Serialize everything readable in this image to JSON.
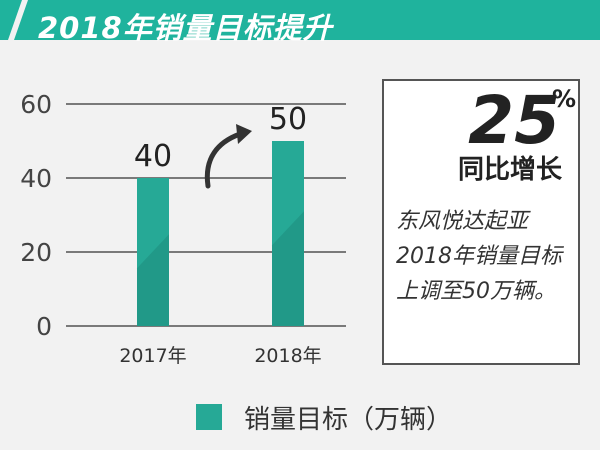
{
  "header": {
    "title": "2018年销量目标提升",
    "accent_color": "#1fb39d"
  },
  "chart_data": {
    "type": "bar",
    "title": "",
    "xlabel": "",
    "ylabel": "",
    "categories": [
      "2017年",
      "2018年"
    ],
    "series": [
      {
        "name": "销量目标（万辆）",
        "values": [
          40,
          50
        ]
      }
    ],
    "data_labels": [
      "40",
      "50"
    ],
    "y_ticks": [
      "0",
      "20",
      "40",
      "60"
    ],
    "ylim": [
      0,
      60
    ],
    "grid": true,
    "legend_position": "bottom",
    "bar_color": "#26a996",
    "bar_shadow_color": "#1d8d7e",
    "annotation": "arrow-up-right"
  },
  "legend": {
    "label": "销量目标（万辆）"
  },
  "info_box": {
    "percent": "25",
    "percent_sign": "%",
    "growth_label": "同比增长",
    "description_lines": [
      "东风悦达起亚",
      "2018年销量目标",
      "上调至50万辆。"
    ]
  }
}
